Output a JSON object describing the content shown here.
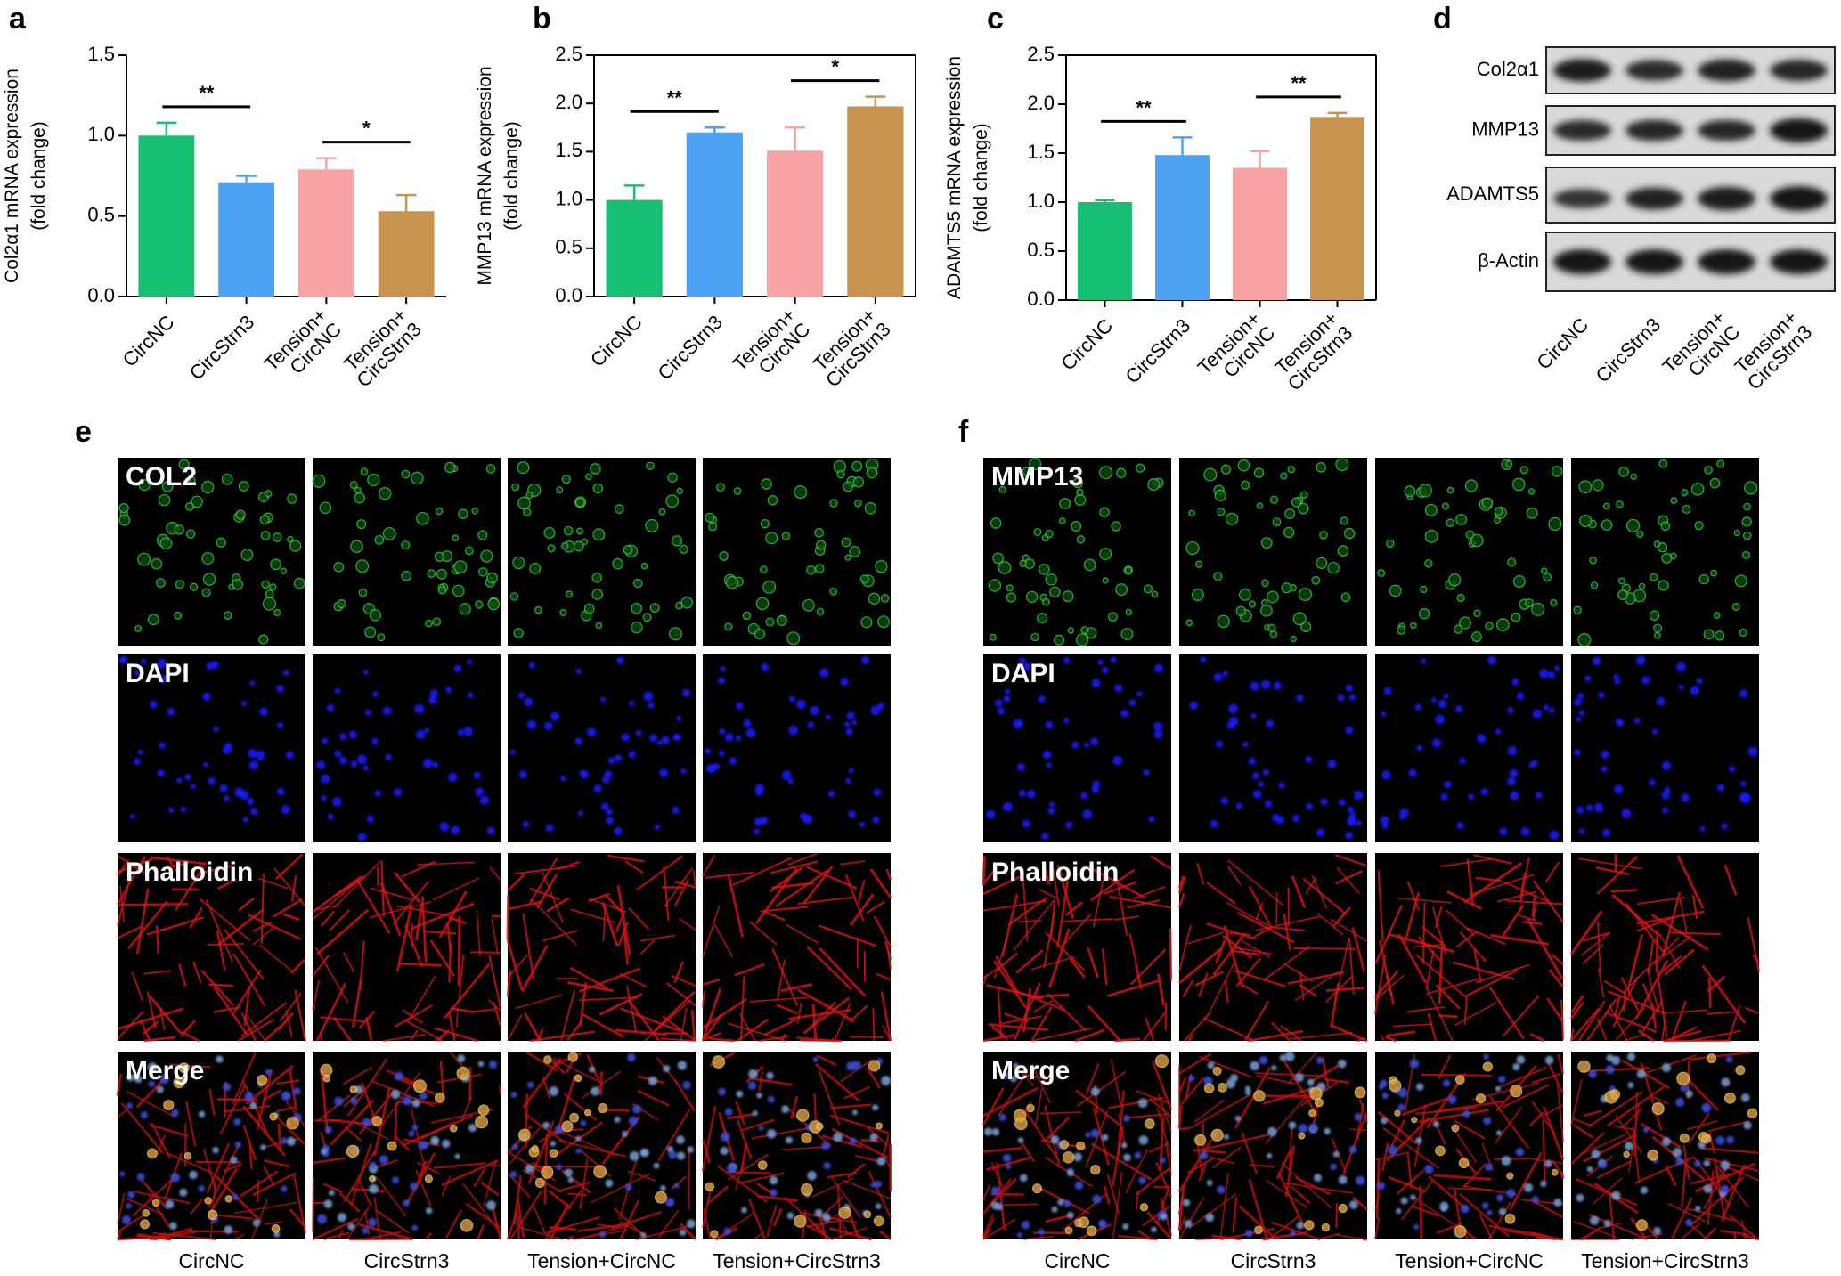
{
  "panel_letters": [
    "a",
    "b",
    "c",
    "d",
    "e",
    "f"
  ],
  "chart_data": [
    {
      "type": "bar",
      "ylabel": [
        "Col2α1 mRNA expression",
        "(fold change)"
      ],
      "categories": [
        [
          "CircNC"
        ],
        [
          "CircStrn3"
        ],
        [
          "Tension+",
          "CircNC"
        ],
        [
          "Tension+",
          "CircStrn3"
        ]
      ],
      "values": [
        1.0,
        0.71,
        0.79,
        0.53
      ],
      "errors": [
        0.08,
        0.04,
        0.07,
        0.1
      ],
      "colors": [
        "#17bf74",
        "#4da2f3",
        "#f8a3a3",
        "#c7944f"
      ],
      "ylim": [
        0,
        1.5
      ],
      "yticks": [
        {
          "value": 0,
          "label": "0.0"
        },
        0.5,
        {
          "value": 1,
          "label": "1.0"
        },
        1.5
      ],
      "annotations": [
        "**",
        "*"
      ],
      "box": false
    },
    {
      "type": "bar",
      "ylabel": [
        "MMP13 mRNA expression",
        "(fold change)"
      ],
      "categories": [
        [
          "CircNC"
        ],
        [
          "CircStrn3"
        ],
        [
          "Tension+",
          "CircNC"
        ],
        [
          "Tension+",
          "CircStrn3"
        ]
      ],
      "values": [
        1.0,
        1.7,
        1.51,
        1.97
      ],
      "errors": [
        0.15,
        0.05,
        0.24,
        0.1
      ],
      "colors": [
        "#17bf74",
        "#4da2f3",
        "#f8a3a3",
        "#c7944f"
      ],
      "ylim": [
        0,
        2.5
      ],
      "yticks": [
        {
          "value": 0,
          "label": "0.0"
        },
        0.5,
        {
          "value": 1,
          "label": "1.0"
        },
        1.5,
        {
          "value": 2,
          "label": "2.0"
        },
        2.5
      ],
      "annotations": [
        "**",
        "*"
      ],
      "box": true
    },
    {
      "type": "bar",
      "ylabel": [
        "ADAMTS5 mRNA expression",
        "(fold change)"
      ],
      "categories": [
        [
          "CircNC"
        ],
        [
          "CircStrn3"
        ],
        [
          "Tension+",
          "CircNC"
        ],
        [
          "Tension+",
          "CircStrn3"
        ]
      ],
      "values": [
        1.0,
        1.48,
        1.35,
        1.87
      ],
      "errors": [
        0.02,
        0.18,
        0.17,
        0.04
      ],
      "colors": [
        "#17bf74",
        "#4da2f3",
        "#f8a3a3",
        "#c7944f"
      ],
      "ylim": [
        0,
        2.5
      ],
      "yticks": [
        {
          "value": 0,
          "label": "0.0"
        },
        0.5,
        {
          "value": 1,
          "label": "1.0"
        },
        1.5,
        {
          "value": 2,
          "label": "2.0"
        },
        2.5
      ],
      "annotations": [
        "**",
        "**"
      ],
      "box": true
    }
  ],
  "blot": {
    "rows": [
      "Col2α1",
      "MMP13",
      "ADAMTS5",
      "β-Actin"
    ],
    "columns": [
      [
        "CircNC"
      ],
      [
        "CircStrn3"
      ],
      [
        "Tension+",
        "CircNC"
      ],
      [
        "Tension+",
        "CircStrn3"
      ]
    ]
  },
  "microscopy": [
    {
      "rows": [
        "COL2",
        "DAPI",
        "Phalloidin",
        "Merge"
      ],
      "columns": [
        "CircNC",
        "CircStrn3",
        "Tension+CircNC",
        "Tension+CircStrn3"
      ]
    },
    {
      "rows": [
        "MMP13",
        "DAPI",
        "Phalloidin",
        "Merge"
      ],
      "columns": [
        "CircNC",
        "CircStrn3",
        "Tension+CircNC",
        "Tension+CircStrn3"
      ]
    }
  ]
}
